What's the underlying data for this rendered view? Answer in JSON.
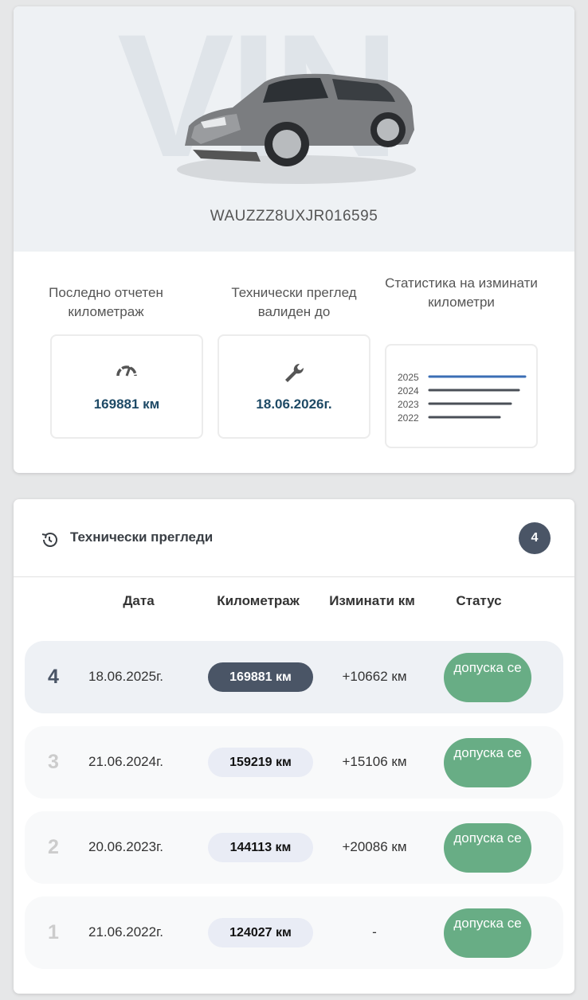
{
  "vehicle": {
    "watermark": "VIN",
    "vin": "WAUZZZ8UXJR016595"
  },
  "stats": {
    "mileage": {
      "label": "Последно отчетен километраж",
      "value": "169881 км",
      "icon": "speedometer-icon"
    },
    "inspection": {
      "label": "Технически преглед валиден до",
      "value": "18.06.2026г.",
      "icon": "wrench-icon"
    },
    "chart": {
      "label": "Статистика на изминати километри",
      "years": [
        "2025",
        "2024",
        "2023",
        "2022"
      ],
      "accent": "#3b6eb5",
      "line_color": "#4a4f57"
    }
  },
  "inspections": {
    "title": "Технически прегледи",
    "icon": "history-icon",
    "count": "4",
    "columns": [
      "Дата",
      "Километраж",
      "Изминати км",
      "Статус"
    ],
    "rows": [
      {
        "index": "4",
        "date": "18.06.2025г.",
        "km": "169881 км",
        "diff": "+10662 км",
        "status": "допуска се"
      },
      {
        "index": "3",
        "date": "21.06.2024г.",
        "km": "159219 км",
        "diff": "+15106 км",
        "status": "допуска се"
      },
      {
        "index": "2",
        "date": "20.06.2023г.",
        "km": "144113 км",
        "diff": "+20086 км",
        "status": "допуска се"
      },
      {
        "index": "1",
        "date": "21.06.2022г.",
        "km": "124027 км",
        "diff": "-",
        "status": "допуска се"
      }
    ]
  },
  "colors": {
    "status_ok": "#68ad85",
    "dark": "#4a5566",
    "value_text": "#1e4a66"
  }
}
